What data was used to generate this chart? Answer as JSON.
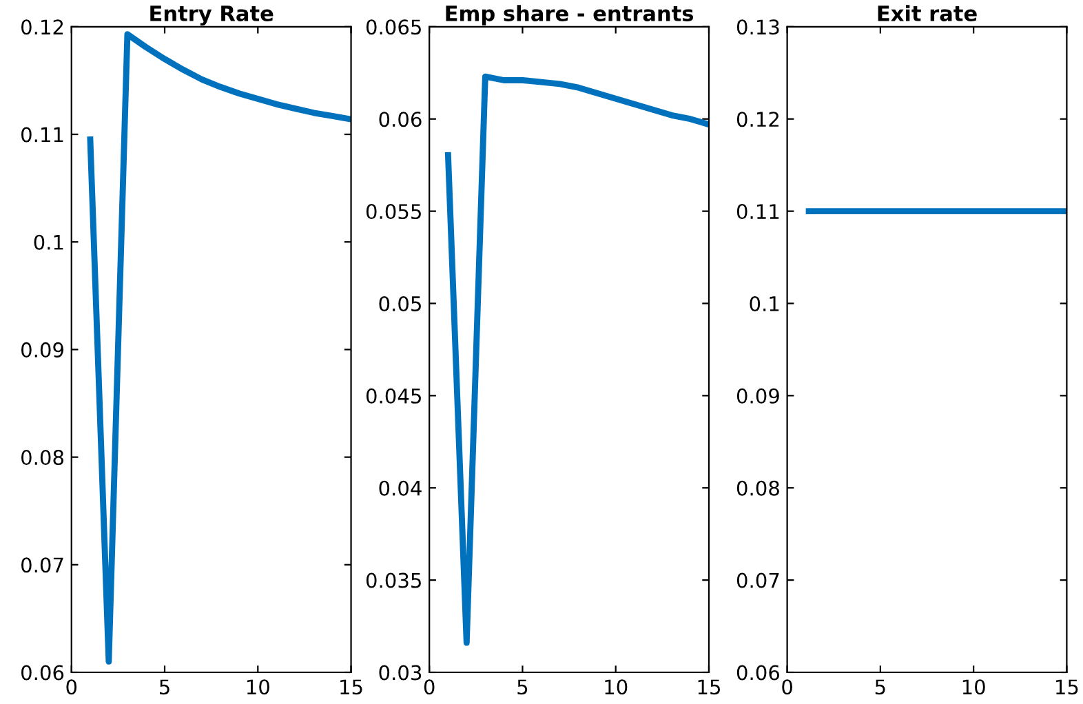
{
  "chart_data": [
    {
      "type": "line",
      "title": "Entry Rate",
      "x": [
        1,
        2,
        3,
        4,
        5,
        6,
        7,
        8,
        9,
        10,
        11,
        12,
        13,
        14,
        15
      ],
      "series": [
        {
          "color": "#0072bd",
          "values": [
            0.1098,
            0.061,
            0.1193,
            0.1181,
            0.117,
            0.116,
            0.1151,
            0.1144,
            0.1138,
            0.1133,
            0.1128,
            0.1124,
            0.112,
            0.1117,
            0.1114
          ]
        }
      ],
      "xlim": [
        0,
        15
      ],
      "xticks": [
        0,
        5,
        10,
        15
      ],
      "ylim": [
        0.06,
        0.12
      ],
      "yticks": [
        0.06,
        0.07,
        0.08,
        0.09,
        0.1,
        0.11,
        0.12
      ],
      "grid": false,
      "legend": false
    },
    {
      "type": "line",
      "title": "Emp share - entrants",
      "x": [
        1,
        2,
        3,
        4,
        5,
        6,
        7,
        8,
        9,
        10,
        11,
        12,
        13,
        14,
        15
      ],
      "series": [
        {
          "color": "#0072bd",
          "values": [
            0.0582,
            0.0316,
            0.0623,
            0.0621,
            0.0621,
            0.062,
            0.0619,
            0.0617,
            0.0614,
            0.0611,
            0.0608,
            0.0605,
            0.0602,
            0.06,
            0.0597
          ]
        }
      ],
      "xlim": [
        0,
        15
      ],
      "xticks": [
        0,
        5,
        10,
        15
      ],
      "ylim": [
        0.03,
        0.065
      ],
      "yticks": [
        0.03,
        0.035,
        0.04,
        0.045,
        0.05,
        0.055,
        0.06,
        0.065
      ],
      "grid": false,
      "legend": false
    },
    {
      "type": "line",
      "title": "Exit rate",
      "x": [
        1,
        2,
        3,
        4,
        5,
        6,
        7,
        8,
        9,
        10,
        11,
        12,
        13,
        14,
        15
      ],
      "series": [
        {
          "color": "#0072bd",
          "values": [
            0.11,
            0.11,
            0.11,
            0.11,
            0.11,
            0.11,
            0.11,
            0.11,
            0.11,
            0.11,
            0.11,
            0.11,
            0.11,
            0.11,
            0.11
          ]
        }
      ],
      "xlim": [
        0,
        15
      ],
      "xticks": [
        0,
        5,
        10,
        15
      ],
      "ylim": [
        0.06,
        0.13
      ],
      "yticks": [
        0.06,
        0.07,
        0.08,
        0.09,
        0.1,
        0.11,
        0.12,
        0.13
      ],
      "grid": false,
      "legend": false
    }
  ]
}
